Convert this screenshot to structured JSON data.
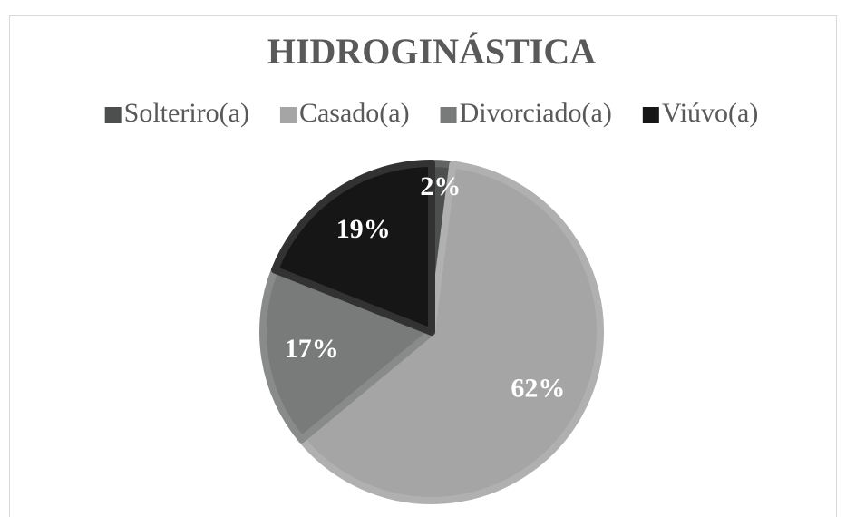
{
  "chart_data": {
    "type": "pie",
    "title": "HIDROGINÁSTICA",
    "categories": [
      "Solteriro(a)",
      "Casado(a)",
      "Divorciado(a)",
      "Viúvo(a)"
    ],
    "values": [
      2,
      62,
      17,
      19
    ],
    "value_labels": [
      "2%",
      "62%",
      "17%",
      "19%"
    ],
    "colors": [
      "#4d4f4f",
      "#a5a5a5",
      "#797a7a",
      "#161616"
    ],
    "legend": "top"
  }
}
